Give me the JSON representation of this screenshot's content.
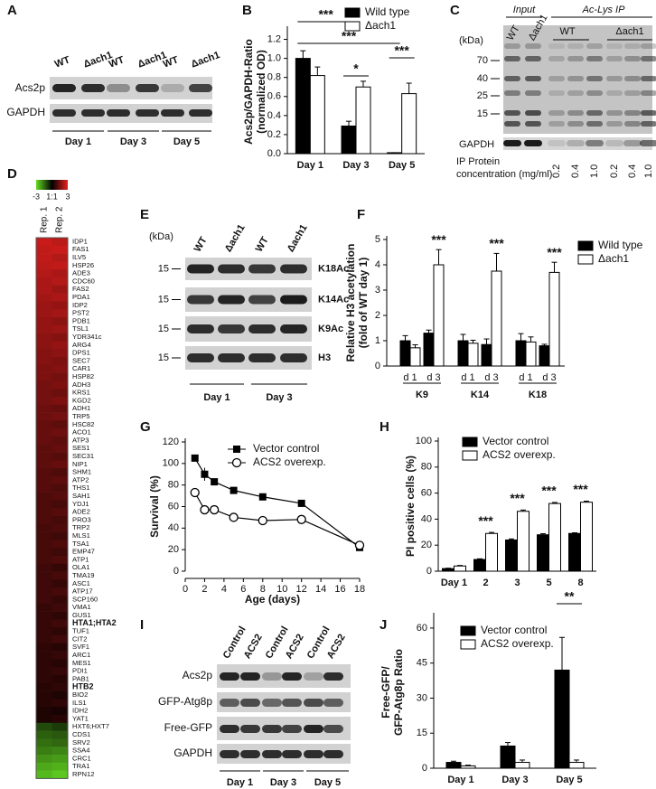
{
  "panel_letters": [
    "A",
    "B",
    "C",
    "D",
    "E",
    "F",
    "G",
    "H",
    "I",
    "J"
  ],
  "blot_a": {
    "columns": [
      "WT",
      "Δach1",
      "WT",
      "Δach1",
      "WT",
      "Δach1"
    ],
    "rows": [
      "Acs2p",
      "GAPDH"
    ],
    "groups": [
      "Day 1",
      "Day 3",
      "Day 5"
    ]
  },
  "blot_c": {
    "header_left": "Input",
    "header_right": "Ac-Lys IP",
    "input_columns": [
      "WT",
      "Δach1"
    ],
    "ip_groups": [
      "WT",
      "Δach1"
    ],
    "unit": "(kDa)",
    "markers": [
      "70",
      "40",
      "25",
      "15"
    ],
    "loading_label": "GAPDH",
    "concentration_label": [
      "IP Protein",
      "concentration (mg/ml)"
    ],
    "concentrations": [
      "0.2",
      "0.4",
      "1.0",
      "0.2",
      "0.4",
      "1.0"
    ]
  },
  "blot_e": {
    "unit": "(kDa)",
    "columns": [
      "WT",
      "Δach1",
      "WT",
      "Δach1"
    ],
    "markers": [
      "15",
      "15",
      "15",
      "15"
    ],
    "rows": [
      "K18Ac",
      "K14Ac",
      "K9Ac",
      "H3"
    ],
    "groups": [
      "Day 1",
      "Day 3"
    ]
  },
  "blot_i": {
    "columns": [
      "Control",
      "ACS2",
      "Control",
      "ACS2",
      "Control",
      "ACS2"
    ],
    "rows": [
      "Acs2p",
      "GFP-Atg8p",
      "Free-GFP",
      "GAPDH"
    ],
    "groups": [
      "Day 1",
      "Day 3",
      "Day 5"
    ]
  },
  "heatmap": {
    "colorbar": {
      "range": [
        -3,
        3
      ],
      "ticks": [
        -3,
        {
          "value": 0,
          "label": "1:1"
        },
        3
      ],
      "low_color": "#66dd22",
      "mid_color": "#000000",
      "high_color": "#e8201e"
    },
    "columns": [
      "Rep. 1",
      "Rep. 2"
    ],
    "highlight_color": "#b0201c",
    "genes": [
      {
        "name": "IDP1"
      },
      {
        "name": "FAS1"
      },
      {
        "name": "ILV5"
      },
      {
        "name": "HSP26"
      },
      {
        "name": "ADE3"
      },
      {
        "name": "CDC60"
      },
      {
        "name": "FAS2"
      },
      {
        "name": "PDA1"
      },
      {
        "name": "IDP2"
      },
      {
        "name": "PST2"
      },
      {
        "name": "PDB1"
      },
      {
        "name": "TSL1"
      },
      {
        "name": "YDR341c"
      },
      {
        "name": "ARG4"
      },
      {
        "name": "DPS1"
      },
      {
        "name": "SEC7"
      },
      {
        "name": "CAR1"
      },
      {
        "name": "HSP82"
      },
      {
        "name": "ADH3"
      },
      {
        "name": "KRS1"
      },
      {
        "name": "KGD2"
      },
      {
        "name": "ADH1"
      },
      {
        "name": "TRP5"
      },
      {
        "name": "HSC82"
      },
      {
        "name": "ACO1"
      },
      {
        "name": "ATP3"
      },
      {
        "name": "SES1"
      },
      {
        "name": "SEC31"
      },
      {
        "name": "NIP1"
      },
      {
        "name": "SHM1"
      },
      {
        "name": "ATP2"
      },
      {
        "name": "THS1"
      },
      {
        "name": "SAH1"
      },
      {
        "name": "YDJ1"
      },
      {
        "name": "ADE2"
      },
      {
        "name": "PRO3"
      },
      {
        "name": "TRP2"
      },
      {
        "name": "MLS1"
      },
      {
        "name": "TSA1"
      },
      {
        "name": "EMP47"
      },
      {
        "name": "ATP1"
      },
      {
        "name": "OLA1"
      },
      {
        "name": "TMA19"
      },
      {
        "name": "ASC1"
      },
      {
        "name": "ATP17"
      },
      {
        "name": "SCP160"
      },
      {
        "name": "VMA1"
      },
      {
        "name": "GUS1"
      },
      {
        "name": "HTA1;HTA2",
        "highlight": true
      },
      {
        "name": "TUF1"
      },
      {
        "name": "CIT2"
      },
      {
        "name": "SVF1"
      },
      {
        "name": "ARC1"
      },
      {
        "name": "MES1"
      },
      {
        "name": "PDI1"
      },
      {
        "name": "PAB1"
      },
      {
        "name": "HTB2",
        "highlight": true
      },
      {
        "name": "BIO2"
      },
      {
        "name": "ILS1"
      },
      {
        "name": "IDH2"
      },
      {
        "name": "YAT1"
      },
      {
        "name": "HXT6;HXT7"
      },
      {
        "name": "CDS1"
      },
      {
        "name": "SRV2"
      },
      {
        "name": "SSA4"
      },
      {
        "name": "CRC1"
      },
      {
        "name": "TRA1"
      },
      {
        "name": "RPN12"
      }
    ],
    "values": [
      [
        2.6,
        2.5,
        2.5,
        2.4,
        2.3,
        2.2,
        2.2,
        2.1,
        2.0,
        2.0,
        1.9,
        1.9,
        1.8,
        1.8,
        1.7,
        1.7,
        1.6,
        1.6,
        1.5,
        1.5,
        1.5,
        1.4,
        1.4,
        1.3,
        1.3,
        1.3,
        1.2,
        1.2,
        1.2,
        1.1,
        1.1,
        1.1,
        1.0,
        1.0,
        1.0,
        1.0,
        0.9,
        0.9,
        0.9,
        0.9,
        0.9,
        0.8,
        0.8,
        0.8,
        0.8,
        0.8,
        0.7,
        0.7,
        0.7,
        0.7,
        0.7,
        0.6,
        0.6,
        0.6,
        0.6,
        0.6,
        0.5,
        0.5,
        0.5,
        0.4,
        0.4,
        -1.0,
        -1.3,
        -1.5,
        -1.7,
        -2.0,
        -2.3,
        -2.5
      ],
      [
        2.4,
        2.6,
        2.3,
        2.5,
        2.2,
        2.3,
        2.0,
        2.2,
        1.9,
        2.1,
        1.8,
        2.0,
        1.7,
        1.9,
        1.8,
        1.6,
        1.7,
        1.5,
        1.6,
        1.4,
        1.6,
        1.3,
        1.5,
        1.2,
        1.4,
        1.2,
        1.3,
        1.1,
        1.3,
        1.0,
        1.2,
        1.0,
        1.1,
        0.9,
        1.1,
        0.9,
        1.0,
        0.8,
        1.0,
        0.8,
        1.0,
        0.7,
        0.9,
        0.7,
        0.9,
        0.7,
        0.8,
        0.6,
        0.8,
        0.6,
        0.8,
        0.5,
        0.7,
        0.5,
        0.7,
        0.5,
        0.6,
        0.4,
        0.6,
        0.3,
        0.5,
        -0.8,
        -1.2,
        -1.4,
        -1.8,
        -2.1,
        -2.4,
        -2.7
      ]
    ]
  },
  "chart_data": [
    {
      "type": "bar",
      "y_label": [
        "Acs2p/GAPDH-Ratio",
        "(normalized OD)"
      ],
      "categories": [
        "Day 1",
        "Day 3",
        "Day 5"
      ],
      "series": [
        {
          "name": "Wild type",
          "color": "#000000",
          "values": [
            1.0,
            0.29,
            0.01
          ],
          "errors": [
            0.08,
            0.05,
            0.0
          ]
        },
        {
          "name": "Δach1",
          "color": "#ffffff",
          "values": [
            0.82,
            0.7,
            0.63
          ],
          "errors": [
            0.09,
            0.06,
            0.11
          ]
        }
      ],
      "ylim": [
        0,
        1.3
      ],
      "yticks": [
        {
          "value": 0,
          "label": "0.0"
        },
        0.2,
        0.4,
        0.6,
        0.8,
        {
          "value": 1,
          "label": "1.0"
        },
        1.2
      ],
      "annotations": [
        "***",
        "***",
        "*",
        "***"
      ]
    },
    {
      "type": "bar",
      "y_label": [
        "Relative H3 acetylation",
        "(fold of WT day 1)"
      ],
      "categories": [
        "d 1",
        "d 3",
        "d 1",
        "d 3",
        "d 1",
        "d 3"
      ],
      "groups": [
        "K9",
        "K14",
        "K18"
      ],
      "series": [
        {
          "name": "Wild type",
          "color": "#000000",
          "values": [
            1.0,
            1.3,
            1.0,
            0.85,
            1.0,
            0.8
          ],
          "errors": [
            0.2,
            0.12,
            0.25,
            0.22,
            0.28,
            0.06
          ]
        },
        {
          "name": "Δach1",
          "color": "#ffffff",
          "values": [
            0.72,
            4.0,
            0.9,
            3.75,
            0.95,
            3.7
          ],
          "errors": [
            0.12,
            0.6,
            0.12,
            0.7,
            0.2,
            0.4
          ]
        }
      ],
      "ylim": [
        0,
        5
      ],
      "yticks": [
        0,
        1,
        2,
        3,
        4,
        5
      ],
      "annotations": [
        "***",
        "***",
        "***"
      ]
    },
    {
      "type": "line",
      "x_label": "Age (days)",
      "y_label": [
        "Survival (%)"
      ],
      "series": [
        {
          "name": "Vector control",
          "color": "#000000",
          "marker": "square",
          "x": [
            1,
            2,
            3,
            5,
            8,
            12,
            18
          ],
          "values": [
            105,
            90,
            83,
            75,
            69,
            63,
            22
          ],
          "errors": [
            2,
            6,
            3,
            2,
            2,
            2,
            3
          ]
        },
        {
          "name": "ACS2 overexp.",
          "color": "#000000",
          "marker": "circle",
          "x": [
            1,
            2,
            3,
            5,
            8,
            12,
            18
          ],
          "values": [
            73,
            57,
            57,
            50,
            47,
            48,
            24
          ],
          "errors": [
            4,
            3,
            2,
            2,
            3,
            2,
            3
          ]
        }
      ],
      "xlim": [
        0,
        18
      ],
      "xticks": [
        0,
        2,
        4,
        6,
        8,
        10,
        12,
        14,
        16,
        18
      ],
      "ylim": [
        0,
        120
      ],
      "yticks": [
        0,
        20,
        40,
        60,
        80,
        100,
        120
      ]
    },
    {
      "type": "bar",
      "y_label": [
        "PI positive cells (%)"
      ],
      "categories": [
        "Day 1",
        "2",
        "3",
        "5",
        "8"
      ],
      "series": [
        {
          "name": "Vector control",
          "color": "#000000",
          "values": [
            2,
            9,
            24,
            28,
            29
          ],
          "errors": [
            0.3,
            0.5,
            0.8,
            0.8,
            0.5
          ]
        },
        {
          "name": "ACS2 overexp.",
          "color": "#ffffff",
          "values": [
            4,
            29,
            46,
            52,
            53
          ],
          "errors": [
            0.4,
            0.8,
            1,
            0.8,
            0.8
          ]
        }
      ],
      "ylim": [
        0,
        100
      ],
      "yticks": [
        0,
        20,
        40,
        60,
        80,
        100
      ],
      "annotations": [
        "***",
        "***",
        "***",
        "***"
      ]
    },
    {
      "type": "bar",
      "y_label": [
        "Free-GFP/",
        "GFP-Atg8p Ratio"
      ],
      "categories": [
        "Day 1",
        "Day 3",
        "Day 5"
      ],
      "series": [
        {
          "name": "Vector control",
          "color": "#000000",
          "values": [
            2.5,
            9.5,
            42
          ],
          "errors": [
            0.5,
            1.5,
            14
          ]
        },
        {
          "name": "ACS2 overexp.",
          "color": "#ffffff",
          "values": [
            1,
            2.5,
            2.5
          ],
          "errors": [
            0.3,
            1,
            1
          ]
        }
      ],
      "ylim": [
        0,
        65
      ],
      "yticks": [
        0,
        15,
        30,
        45,
        60
      ],
      "annotations": [
        "**"
      ]
    }
  ]
}
